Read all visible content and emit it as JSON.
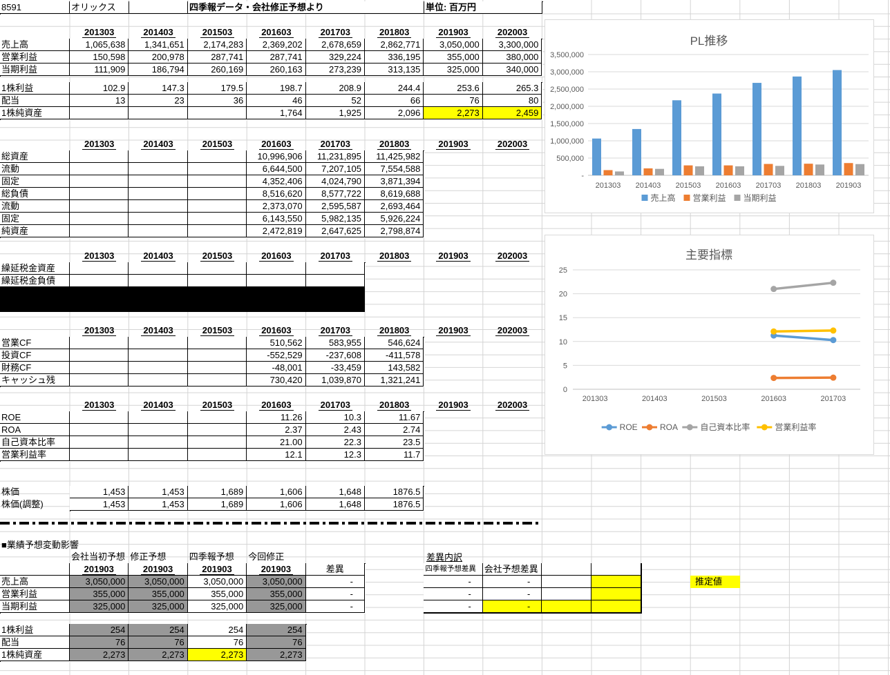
{
  "sheet": {
    "code": "8591",
    "company": "オリックス",
    "source": "四季報データ・会社修正予想より",
    "unit": "単位: 百万円"
  },
  "years": [
    "201303",
    "201403",
    "201503",
    "201603",
    "201703",
    "201803",
    "201903",
    "202003"
  ],
  "pl_table": {
    "rows": [
      {
        "label": "売上高",
        "values": [
          "1,065,638",
          "1,341,651",
          "2,174,283",
          "2,369,202",
          "2,678,659",
          "2,862,771",
          "3,050,000",
          "3,300,000"
        ]
      },
      {
        "label": "営業利益",
        "values": [
          "150,598",
          "200,978",
          "287,741",
          "287,741",
          "329,224",
          "336,195",
          "355,000",
          "380,000"
        ]
      },
      {
        "label": "当期利益",
        "values": [
          "111,909",
          "186,794",
          "260,169",
          "260,163",
          "273,239",
          "313,135",
          "325,000",
          "340,000"
        ]
      }
    ]
  },
  "per_share_table": {
    "rows": [
      {
        "label": "1株利益",
        "values": [
          "102.9",
          "147.3",
          "179.5",
          "198.7",
          "208.9",
          "244.4",
          "253.6",
          "265.3"
        ]
      },
      {
        "label": "配当",
        "values": [
          "13",
          "23",
          "36",
          "46",
          "52",
          "66",
          "76",
          "80"
        ]
      },
      {
        "label": "1株純資産",
        "values": [
          "",
          "",
          "",
          "1,764",
          "1,925",
          "2,096",
          "2,273",
          "2,459"
        ]
      }
    ]
  },
  "balance_table": {
    "rows": [
      {
        "label": "総資産",
        "values": [
          "",
          "",
          "",
          "10,996,906",
          "11,231,895",
          "11,425,982",
          "",
          ""
        ]
      },
      {
        "label": "流動",
        "values": [
          "",
          "",
          "",
          "6,644,500",
          "7,207,105",
          "7,554,588",
          "",
          ""
        ]
      },
      {
        "label": "固定",
        "values": [
          "",
          "",
          "",
          "4,352,406",
          "4,024,790",
          "3,871,394",
          "",
          ""
        ]
      },
      {
        "label": "総負債",
        "values": [
          "",
          "",
          "",
          "8,516,620",
          "8,577,722",
          "8,619,688",
          "",
          ""
        ]
      },
      {
        "label": "流動",
        "values": [
          "",
          "",
          "",
          "2,373,070",
          "2,595,587",
          "2,693,464",
          "",
          ""
        ]
      },
      {
        "label": "固定",
        "values": [
          "",
          "",
          "",
          "6,143,550",
          "5,982,135",
          "5,926,224",
          "",
          ""
        ]
      },
      {
        "label": "純資産",
        "values": [
          "",
          "",
          "",
          "2,472,819",
          "2,647,625",
          "2,798,874",
          "",
          ""
        ]
      }
    ]
  },
  "deferred_table": {
    "rows": [
      {
        "label": "繰延税金資産",
        "values": [
          "",
          "",
          "",
          "",
          "",
          "",
          "",
          ""
        ]
      },
      {
        "label": "繰延税金負債",
        "values": [
          "",
          "",
          "",
          "",
          "",
          "",
          "",
          ""
        ]
      }
    ]
  },
  "cf_table": {
    "rows": [
      {
        "label": "営業CF",
        "values": [
          "",
          "",
          "",
          "510,562",
          "583,955",
          "546,624",
          "",
          ""
        ]
      },
      {
        "label": "投資CF",
        "values": [
          "",
          "",
          "",
          "-552,529",
          "-237,608",
          "-411,578",
          "",
          ""
        ]
      },
      {
        "label": "財務CF",
        "values": [
          "",
          "",
          "",
          "-48,001",
          "-33,459",
          "143,582",
          "",
          ""
        ]
      },
      {
        "label": "キャッシュ残",
        "values": [
          "",
          "",
          "",
          "730,420",
          "1,039,870",
          "1,321,241",
          "",
          ""
        ]
      }
    ]
  },
  "ratio_table": {
    "rows": [
      {
        "label": "ROE",
        "values": [
          "",
          "",
          "",
          "11.26",
          "10.3",
          "11.67",
          "",
          ""
        ]
      },
      {
        "label": "ROA",
        "values": [
          "",
          "",
          "",
          "2.37",
          "2.43",
          "2.74",
          "",
          ""
        ]
      },
      {
        "label": "自己資本比率",
        "values": [
          "",
          "",
          "",
          "21.00",
          "22.3",
          "23.5",
          "",
          ""
        ]
      },
      {
        "label": "営業利益率",
        "values": [
          "",
          "",
          "",
          "12.1",
          "12.3",
          "11.7",
          "",
          ""
        ]
      }
    ]
  },
  "price_table": {
    "rows": [
      {
        "label": "株価",
        "values": [
          "1,453",
          "1,453",
          "1,689",
          "1,606",
          "1,648",
          "1876.5"
        ]
      },
      {
        "label": "株価(調整)",
        "values": [
          "1,453",
          "1,453",
          "1,689",
          "1,606",
          "1,648",
          "1876.5"
        ]
      }
    ]
  },
  "forecast": {
    "title": "■業績予想変動影響",
    "group_headers": [
      "会社当初予想",
      "修正予想",
      "四季報予想",
      "今回修正"
    ],
    "year_header": "201903",
    "diff_header": "差異",
    "rows": [
      {
        "label": "売上高",
        "values": [
          "3,050,000",
          "3,050,000",
          "3,050,000",
          "3,050,000"
        ],
        "diff": "-"
      },
      {
        "label": "営業利益",
        "values": [
          "355,000",
          "355,000",
          "355,000",
          "355,000"
        ],
        "diff": "-"
      },
      {
        "label": "当期利益",
        "values": [
          "325,000",
          "325,000",
          "325,000",
          "325,000"
        ],
        "diff": "-"
      }
    ],
    "per_share_rows": [
      {
        "label": "1株利益",
        "values": [
          "254",
          "254",
          "254",
          "254"
        ]
      },
      {
        "label": "配当",
        "values": [
          "76",
          "76",
          "76",
          "76"
        ]
      },
      {
        "label": "1株純資産",
        "values": [
          "2,273",
          "2,273",
          "2,273",
          "2,273"
        ]
      }
    ]
  },
  "diff_detail": {
    "title": "差異内訳",
    "col1_header": "四季報予想差異",
    "col2_header": "会社予想差異",
    "rows": [
      [
        "-",
        "-",
        "",
        ""
      ],
      [
        "-",
        "-",
        "",
        ""
      ],
      [
        "-",
        "-",
        "",
        ""
      ]
    ]
  },
  "estimate_label": "推定値",
  "chart_data": [
    {
      "type": "bar",
      "title": "PL推移",
      "categories": [
        "201303",
        "201403",
        "201503",
        "201603",
        "201703",
        "201803",
        "201903"
      ],
      "series": [
        {
          "name": "売上高",
          "color": "#5B9BD5",
          "values": [
            1065638,
            1341651,
            2174283,
            2369202,
            2678659,
            2862771,
            3050000
          ]
        },
        {
          "name": "営業利益",
          "color": "#ED7D31",
          "values": [
            150598,
            200978,
            287741,
            287741,
            329224,
            336195,
            355000
          ]
        },
        {
          "name": "当期利益",
          "color": "#A5A5A5",
          "values": [
            111909,
            186794,
            260169,
            260163,
            273239,
            313135,
            325000
          ]
        }
      ],
      "ylim": [
        0,
        3500000
      ],
      "ytick_step": 500000,
      "ytick_labels": [
        "-",
        "500,000",
        "1,000,000",
        "1,500,000",
        "2,000,000",
        "2,500,000",
        "3,000,000",
        "3,500,000"
      ],
      "grid": true,
      "legend_position": "bottom"
    },
    {
      "type": "line",
      "title": "主要指標",
      "categories": [
        "201303",
        "201403",
        "201503",
        "201603",
        "201703"
      ],
      "series": [
        {
          "name": "ROE",
          "color": "#5B9BD5",
          "values": [
            null,
            null,
            null,
            11.26,
            10.3
          ]
        },
        {
          "name": "ROA",
          "color": "#ED7D31",
          "values": [
            null,
            null,
            null,
            2.37,
            2.43
          ]
        },
        {
          "name": "自己資本比率",
          "color": "#A5A5A5",
          "values": [
            null,
            null,
            null,
            21.0,
            22.3
          ]
        },
        {
          "name": "営業利益率",
          "color": "#FFC000",
          "values": [
            null,
            null,
            null,
            12.1,
            12.3
          ]
        }
      ],
      "ylim": [
        0,
        25
      ],
      "ytick_step": 5,
      "ytick_labels": [
        "0",
        "5",
        "10",
        "15",
        "20",
        "25"
      ],
      "grid": true,
      "legend_position": "bottom"
    }
  ]
}
